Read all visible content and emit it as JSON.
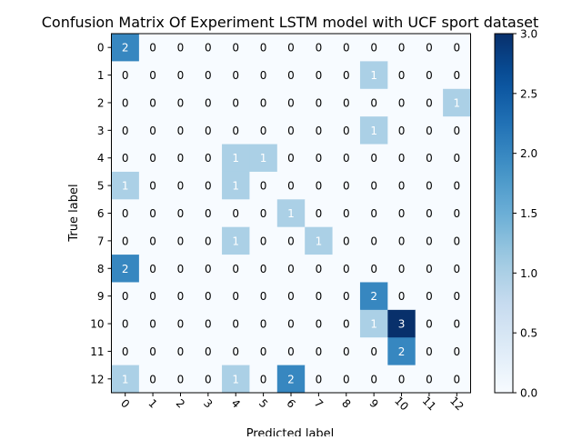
{
  "chart_data": {
    "type": "heatmap",
    "title": "Confusion Matrix Of Experiment LSTM model with UCF sport dataset",
    "xlabel": "Predicted label",
    "ylabel": "True label",
    "x_categories": [
      "0",
      "1",
      "2",
      "3",
      "4",
      "5",
      "6",
      "7",
      "8",
      "9",
      "10",
      "11",
      "12"
    ],
    "y_categories": [
      "0",
      "1",
      "2",
      "3",
      "4",
      "5",
      "6",
      "7",
      "8",
      "9",
      "10",
      "11",
      "12"
    ],
    "values": [
      [
        2,
        0,
        0,
        0,
        0,
        0,
        0,
        0,
        0,
        0,
        0,
        0,
        0
      ],
      [
        0,
        0,
        0,
        0,
        0,
        0,
        0,
        0,
        0,
        1,
        0,
        0,
        0
      ],
      [
        0,
        0,
        0,
        0,
        0,
        0,
        0,
        0,
        0,
        0,
        0,
        0,
        1
      ],
      [
        0,
        0,
        0,
        0,
        0,
        0,
        0,
        0,
        0,
        1,
        0,
        0,
        0
      ],
      [
        0,
        0,
        0,
        0,
        1,
        1,
        0,
        0,
        0,
        0,
        0,
        0,
        0
      ],
      [
        1,
        0,
        0,
        0,
        1,
        0,
        0,
        0,
        0,
        0,
        0,
        0,
        0
      ],
      [
        0,
        0,
        0,
        0,
        0,
        0,
        1,
        0,
        0,
        0,
        0,
        0,
        0
      ],
      [
        0,
        0,
        0,
        0,
        1,
        0,
        0,
        1,
        0,
        0,
        0,
        0,
        0
      ],
      [
        2,
        0,
        0,
        0,
        0,
        0,
        0,
        0,
        0,
        0,
        0,
        0,
        0
      ],
      [
        0,
        0,
        0,
        0,
        0,
        0,
        0,
        0,
        0,
        2,
        0,
        0,
        0
      ],
      [
        0,
        0,
        0,
        0,
        0,
        0,
        0,
        0,
        0,
        1,
        3,
        0,
        0
      ],
      [
        0,
        0,
        0,
        0,
        0,
        0,
        0,
        0,
        0,
        0,
        2,
        0,
        0
      ],
      [
        1,
        0,
        0,
        0,
        1,
        0,
        2,
        0,
        0,
        0,
        0,
        0,
        0
      ]
    ],
    "colormap": "Blues",
    "colorbar": {
      "range": [
        0.0,
        3.0
      ],
      "ticks": [
        "0.0",
        "0.5",
        "1.0",
        "1.5",
        "2.0",
        "2.5",
        "3.0"
      ]
    },
    "x_tick_rotation_deg": 45,
    "grid": false
  }
}
